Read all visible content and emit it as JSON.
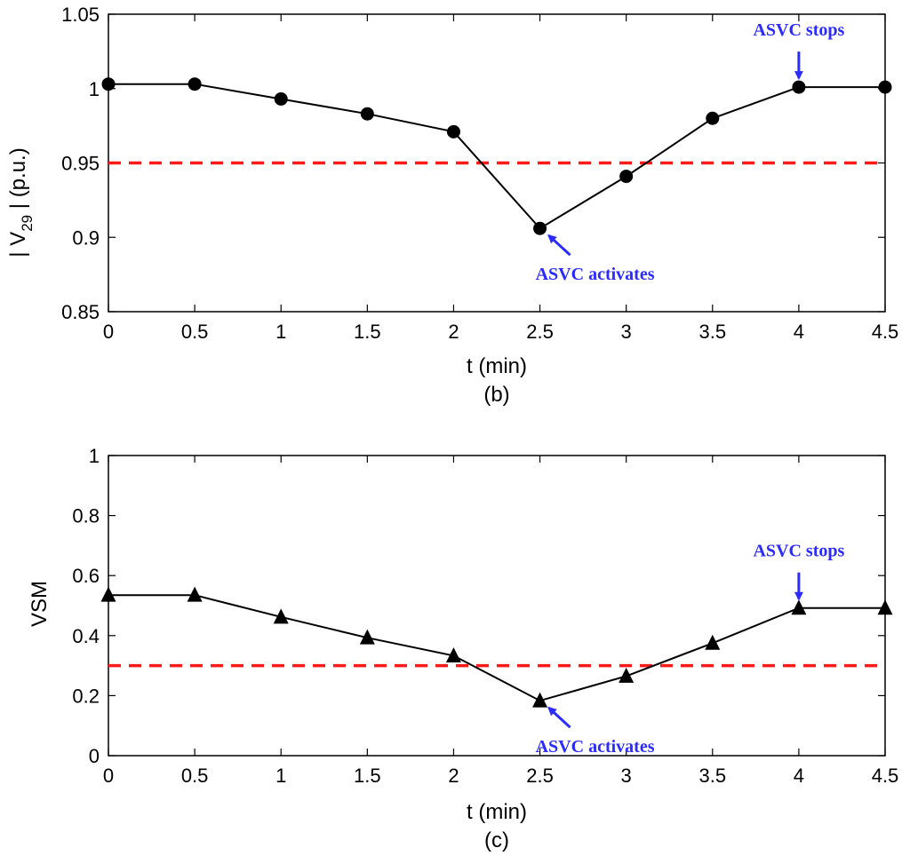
{
  "chart_data": [
    {
      "type": "line",
      "ylabel": "| V29 |  (p.u.)",
      "ylabel_main": "| V",
      "ylabel_sub": "29",
      "ylabel_tail": " |  (p.u.)",
      "xlabel": "t (min)",
      "caption": "(b)",
      "x": [
        0,
        0.5,
        1,
        1.5,
        2,
        2.5,
        3,
        3.5,
        4,
        4.5
      ],
      "xticks": [
        0,
        0.5,
        1,
        1.5,
        2,
        2.5,
        3,
        3.5,
        4,
        4.5
      ],
      "yticks": [
        0.85,
        0.9,
        0.95,
        1,
        1.05
      ],
      "xlim": [
        0,
        4.5
      ],
      "ylim": [
        0.85,
        1.05
      ],
      "marker": "circle",
      "series": [
        {
          "values": [
            1.003,
            1.003,
            0.993,
            0.983,
            0.971,
            0.906,
            0.941,
            0.98,
            1.001,
            1.001
          ],
          "color": "#000000"
        }
      ],
      "threshold": {
        "value": 0.95,
        "color": "#ff1a1a",
        "style": "dashed"
      },
      "annotations": [
        {
          "text": "ASVC stops",
          "x": 4,
          "y": 1.001,
          "arrow": "down",
          "color": "#2b2bff"
        },
        {
          "text": "ASVC activates",
          "x": 2.5,
          "y": 0.906,
          "arrow": "up-left",
          "color": "#2b2bff"
        }
      ],
      "grid": false
    },
    {
      "type": "line",
      "ylabel": "VSM",
      "xlabel": "t (min)",
      "caption": "(c)",
      "x": [
        0,
        0.5,
        1,
        1.5,
        2,
        2.5,
        3,
        3.5,
        4,
        4.5
      ],
      "xticks": [
        0,
        0.5,
        1,
        1.5,
        2,
        2.5,
        3,
        3.5,
        4,
        4.5
      ],
      "yticks": [
        0,
        0.2,
        0.4,
        0.6,
        0.8,
        1
      ],
      "xlim": [
        0,
        4.5
      ],
      "ylim": [
        0,
        1
      ],
      "marker": "triangle",
      "series": [
        {
          "values": [
            0.535,
            0.535,
            0.462,
            0.393,
            0.333,
            0.183,
            0.265,
            0.375,
            0.492,
            0.492
          ],
          "color": "#000000"
        }
      ],
      "threshold": {
        "value": 0.3,
        "color": "#ff1a1a",
        "style": "dashed"
      },
      "annotations": [
        {
          "text": "ASVC stops",
          "x": 4,
          "y": 0.492,
          "arrow": "down",
          "color": "#2b2bff"
        },
        {
          "text": "ASVC activates",
          "x": 2.5,
          "y": 0.183,
          "arrow": "up-left",
          "color": "#2b2bff"
        }
      ],
      "grid": false
    }
  ]
}
